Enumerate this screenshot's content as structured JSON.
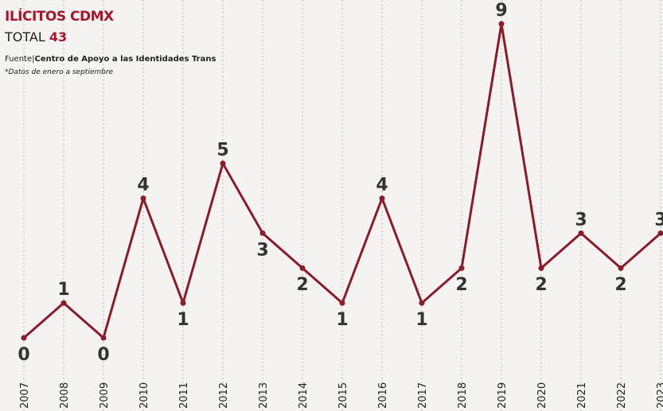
{
  "chart_data": {
    "type": "line",
    "title": "ILÍCITOS CDMX",
    "total_label": "TOTAL",
    "total": 43,
    "source_label": "Fuente|",
    "source": "Centro de Apoyo a las Identidades Trans",
    "note": "*Datos de enero a septiembre",
    "categories": [
      "2007",
      "2008",
      "2009",
      "2010",
      "2011",
      "2012",
      "2013",
      "2014",
      "2015",
      "2016",
      "2017",
      "2018",
      "2019",
      "2020",
      "2021",
      "2022",
      "2023"
    ],
    "values": [
      0,
      1,
      0,
      4,
      1,
      5,
      3,
      2,
      1,
      4,
      1,
      2,
      9,
      2,
      3,
      2,
      3
    ],
    "color": "#8b1a2b",
    "grid": true
  }
}
